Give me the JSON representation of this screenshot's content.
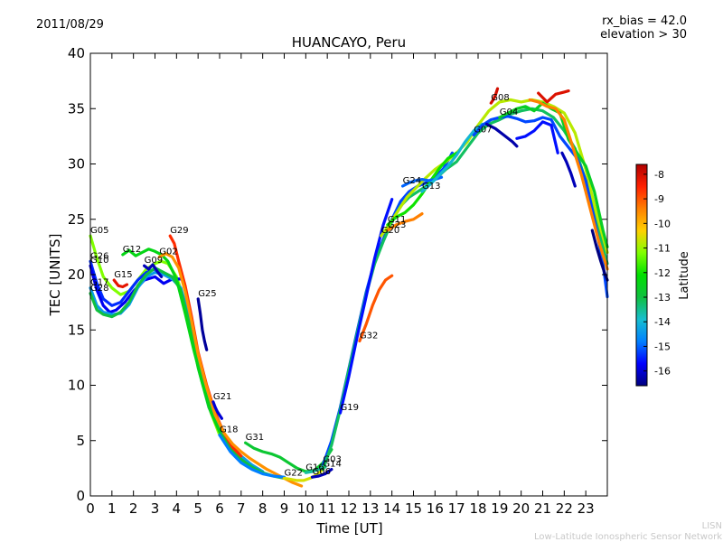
{
  "header": {
    "date": "2011/08/29",
    "rx_bias": "rx_bias = 42.0",
    "elevation": "elevation > 30"
  },
  "footer": {
    "line1": "LISN",
    "line2": "Low-Latitude Ionospheric Sensor Network"
  },
  "colormap": [
    "#00007f",
    "#0000ff",
    "#0080ff",
    "#17becf",
    "#10c040",
    "#00e000",
    "#80ff00",
    "#ffd000",
    "#ff8000",
    "#ff2000",
    "#b00000"
  ],
  "chart_data": {
    "type": "line",
    "title": "HUANCAYO, Peru",
    "xlabel": "Time [UT]",
    "ylabel": "TEC [UNITS]",
    "xlim": [
      0,
      24
    ],
    "ylim": [
      0,
      40
    ],
    "xticks": [
      "0",
      "1",
      "2",
      "3",
      "4",
      "5",
      "6",
      "7",
      "8",
      "9",
      "10",
      "11",
      "12",
      "13",
      "14",
      "15",
      "16",
      "17",
      "18",
      "19",
      "20",
      "21",
      "22",
      "23"
    ],
    "yticks": [
      "0",
      "5",
      "10",
      "15",
      "20",
      "25",
      "30",
      "35",
      "40"
    ],
    "grid": false,
    "colorbar": {
      "label": "Latitude",
      "range": [
        -16.6,
        -7.6
      ],
      "ticks": [
        "-8",
        "-9",
        "-10",
        "-11",
        "-12",
        "-13",
        "-14",
        "-15",
        "-16"
      ]
    },
    "series": [
      {
        "name": "G05",
        "lat": -11.2,
        "x": [
          0.0,
          0.3,
          0.6,
          1.0,
          1.4,
          1.8,
          2.2,
          2.6,
          3.0,
          3.3,
          3.6,
          4.0,
          4.4,
          4.8,
          5.2,
          5.6,
          6.0
        ],
        "y": [
          23.5,
          21.5,
          19.8,
          18.8,
          18.2,
          18.5,
          19.5,
          20.5,
          21.0,
          21.2,
          21.0,
          19.8,
          17.5,
          14.0,
          10.5,
          7.5,
          5.5
        ]
      },
      {
        "name": "G26",
        "lat": -15.4,
        "x": [
          0.0,
          0.3,
          0.6,
          1.0,
          1.4,
          1.8,
          2.2,
          2.6,
          3.0,
          3.4
        ],
        "y": [
          21.2,
          19.2,
          17.8,
          17.2,
          17.5,
          18.5,
          19.5,
          20.2,
          20.5,
          20.2
        ]
      },
      {
        "name": "G10",
        "lat": -15.8,
        "x": [
          0.0,
          0.3,
          0.6,
          0.9,
          1.2,
          1.6,
          2.0,
          2.5,
          3.0,
          3.4,
          3.8,
          4.2
        ],
        "y": [
          20.8,
          18.6,
          17.2,
          16.6,
          16.8,
          17.5,
          18.5,
          19.5,
          19.8,
          19.2,
          19.6,
          19.6
        ]
      },
      {
        "name": "G17",
        "lat": -14.4,
        "x": [
          0.0,
          0.3,
          0.6,
          1.0,
          1.4,
          1.8,
          2.2,
          2.6,
          3.0,
          3.4,
          3.8,
          4.2,
          4.6,
          5.0,
          5.5,
          6.0,
          6.5,
          7.0,
          7.5,
          8.0
        ],
        "y": [
          18.8,
          17.2,
          16.6,
          16.4,
          16.5,
          17.3,
          18.8,
          19.8,
          20.2,
          20.0,
          19.6,
          18.8,
          16.0,
          12.2,
          8.5,
          6.2,
          4.6,
          3.6,
          2.8,
          2.2
        ]
      },
      {
        "name": "G28",
        "lat": -13.0,
        "x": [
          0.0,
          0.3,
          0.6,
          1.0,
          1.4,
          1.8,
          2.2,
          2.6,
          3.0,
          3.4,
          3.8,
          4.2,
          4.6,
          5.0,
          5.5,
          6.0,
          6.5,
          7.0,
          7.5,
          8.0,
          8.5,
          9.0
        ],
        "y": [
          18.3,
          16.8,
          16.4,
          16.2,
          16.6,
          17.5,
          19.0,
          20.0,
          20.6,
          20.2,
          19.8,
          18.6,
          15.5,
          11.6,
          8.0,
          5.8,
          4.3,
          3.3,
          2.6,
          2.1,
          1.8,
          1.6
        ]
      },
      {
        "name": "G15",
        "lat": -8.2,
        "x": [
          1.1,
          1.3,
          1.5,
          1.7
        ],
        "y": [
          19.5,
          19.0,
          18.9,
          19.1
        ]
      },
      {
        "name": "G12",
        "lat": -12.4,
        "x": [
          1.5,
          1.8,
          2.1,
          2.4,
          2.7,
          3.0,
          3.3,
          3.6,
          4.0,
          4.4,
          4.8,
          5.2,
          5.6,
          6.0
        ],
        "y": [
          21.8,
          22.2,
          21.7,
          22.0,
          22.3,
          22.1,
          21.8,
          21.2,
          19.6,
          16.5,
          13.2,
          10.2,
          7.6,
          5.8
        ]
      },
      {
        "name": "G09",
        "lat": -16.2,
        "x": [
          2.5,
          2.7,
          2.9,
          3.1,
          3.3
        ],
        "y": [
          20.8,
          20.5,
          20.9,
          20.3,
          19.8
        ]
      },
      {
        "name": "G29",
        "lat": -8.6,
        "x": [
          3.7,
          3.9,
          4.1,
          4.4,
          4.7,
          5.0,
          5.4,
          5.8,
          6.2,
          6.6,
          7.0
        ],
        "y": [
          23.5,
          22.8,
          21.2,
          19.0,
          16.2,
          13.0,
          10.0,
          7.5,
          5.7,
          4.4,
          3.6
        ]
      },
      {
        "name": "G02",
        "lat": -9.6,
        "x": [
          3.2,
          3.5,
          3.8,
          4.1,
          4.4,
          4.7,
          5.0,
          5.4,
          5.8,
          6.2,
          6.6,
          7.0,
          7.4,
          7.8,
          8.2,
          8.6,
          9.0,
          9.4,
          9.8
        ],
        "y": [
          21.6,
          21.9,
          21.6,
          20.6,
          18.5,
          15.8,
          12.8,
          9.8,
          7.3,
          5.7,
          4.7,
          4.0,
          3.4,
          2.9,
          2.4,
          2.0,
          1.6,
          1.2,
          0.9
        ]
      },
      {
        "name": "G25",
        "lat": -16.4,
        "x": [
          5.0,
          5.1,
          5.2,
          5.3,
          5.4
        ],
        "y": [
          17.8,
          16.5,
          15.0,
          14.0,
          13.2
        ]
      },
      {
        "name": "G21",
        "lat": -16.0,
        "x": [
          5.7,
          5.8,
          5.9,
          6.0,
          6.1
        ],
        "y": [
          8.5,
          8.0,
          7.6,
          7.3,
          7.0
        ]
      },
      {
        "name": "G31",
        "lat": -12.8,
        "x": [
          7.2,
          7.6,
          8.0,
          8.4,
          8.8,
          9.2,
          9.6,
          10.0,
          10.4,
          10.8,
          11.2
        ],
        "y": [
          4.8,
          4.3,
          4.0,
          3.8,
          3.5,
          3.0,
          2.5,
          2.2,
          2.3,
          3.0,
          4.2
        ]
      },
      {
        "name": "G18",
        "lat": -14.8,
        "x": [
          6.0,
          6.5,
          7.0,
          7.5,
          8.0,
          8.5,
          9.0
        ],
        "y": [
          5.5,
          4.0,
          3.0,
          2.4,
          2.0,
          1.8,
          1.7
        ]
      },
      {
        "name": "G22",
        "lat": -10.6,
        "x": [
          9.0,
          9.3,
          9.6,
          9.9,
          10.2,
          10.5,
          10.8
        ],
        "y": [
          1.6,
          1.5,
          1.4,
          1.4,
          1.6,
          1.9,
          2.4
        ]
      },
      {
        "name": "G16",
        "lat": -13.6,
        "x": [
          10.0,
          10.3,
          10.6,
          10.9
        ],
        "y": [
          2.1,
          2.2,
          2.4,
          2.6
        ]
      },
      {
        "name": "G06",
        "lat": -16.2,
        "x": [
          10.3,
          10.6,
          10.9,
          11.2
        ],
        "y": [
          1.7,
          1.8,
          2.0,
          2.4
        ]
      },
      {
        "name": "G03",
        "lat": -15.2,
        "x": [
          10.8,
          11.2,
          11.6,
          12.0,
          12.4,
          12.8,
          13.2,
          13.6,
          14.0,
          14.4,
          14.8,
          15.2,
          15.6,
          16.0,
          16.4,
          16.8
        ],
        "y": [
          2.8,
          5.0,
          8.0,
          11.5,
          15.0,
          18.4,
          21.2,
          23.2,
          25.0,
          26.6,
          27.5,
          28.0,
          28.3,
          28.8,
          29.6,
          31.0
        ]
      },
      {
        "name": "G14",
        "lat": -13.2,
        "x": [
          10.8,
          11.2,
          11.6,
          12.0,
          12.4,
          12.8,
          13.2,
          13.6,
          14.0,
          14.4,
          14.8,
          15.2,
          15.6,
          16.0,
          16.5,
          17.0,
          17.5,
          18.0,
          18.5,
          19.0,
          19.5,
          20.0,
          20.5,
          21.0,
          21.5,
          22.0,
          22.5,
          23.0,
          23.5,
          24.0
        ],
        "y": [
          2.4,
          4.6,
          7.8,
          11.4,
          14.8,
          18.2,
          21.0,
          23.0,
          24.8,
          26.2,
          27.0,
          27.5,
          28.0,
          28.6,
          29.5,
          30.2,
          31.5,
          32.8,
          33.6,
          34.0,
          34.5,
          34.8,
          35.0,
          34.8,
          34.2,
          33.0,
          31.4,
          28.5,
          24.8,
          21.0
        ]
      },
      {
        "name": "G19",
        "lat": -15.6,
        "x": [
          11.6,
          12.0,
          12.4,
          12.8,
          13.2,
          13.6,
          14.0
        ],
        "y": [
          7.5,
          10.8,
          14.5,
          18.0,
          21.5,
          24.5,
          26.8
        ]
      },
      {
        "name": "G32",
        "lat": -9.0,
        "x": [
          12.5,
          12.8,
          13.1,
          13.4,
          13.7,
          14.0
        ],
        "y": [
          14.0,
          15.5,
          17.2,
          18.6,
          19.5,
          19.9
        ]
      },
      {
        "name": "G20",
        "lat": -10.8,
        "x": [
          13.5,
          13.9,
          14.3,
          14.7,
          15.1,
          15.5,
          16.0,
          16.5,
          17.0,
          17.5,
          18.0,
          18.5,
          19.0,
          19.5,
          20.0,
          20.5,
          21.0,
          21.5,
          22.0,
          22.5,
          23.0,
          23.5,
          24.0
        ],
        "y": [
          23.5,
          24.6,
          25.8,
          27.0,
          27.8,
          28.6,
          29.5,
          30.2,
          31.0,
          32.0,
          33.5,
          34.8,
          35.6,
          35.8,
          35.6,
          35.8,
          35.6,
          35.2,
          34.6,
          32.8,
          29.5,
          25.5,
          22.0
        ]
      },
      {
        "name": "G11",
        "lat": -12.0,
        "x": [
          13.8,
          14.2,
          14.6,
          15.0,
          15.4,
          15.8,
          16.2,
          16.6,
          17.0
        ],
        "y": [
          24.5,
          25.2,
          25.6,
          26.3,
          27.3,
          28.5,
          29.6,
          30.5,
          31.0
        ]
      },
      {
        "name": "G23",
        "lat": -9.4,
        "x": [
          13.8,
          14.2,
          14.6,
          15.0,
          15.4
        ],
        "y": [
          24.0,
          24.5,
          24.8,
          25.0,
          25.5
        ]
      },
      {
        "name": "G24",
        "lat": -15.0,
        "x": [
          14.5,
          14.8,
          15.1,
          15.4,
          15.7,
          16.0,
          16.3
        ],
        "y": [
          28.0,
          28.3,
          28.5,
          28.6,
          28.5,
          28.6,
          28.8
        ]
      },
      {
        "name": "G13",
        "lat": -14.0,
        "x": [
          15.4,
          15.8,
          16.2,
          16.6,
          17.0,
          17.4,
          17.8,
          18.2
        ],
        "y": [
          27.5,
          28.2,
          29.0,
          29.8,
          30.8,
          32.0,
          33.0,
          33.6
        ]
      },
      {
        "name": "G07",
        "lat": -15.2,
        "x": [
          17.8,
          18.2,
          18.6,
          19.0,
          19.4,
          19.8,
          20.2,
          20.6,
          21.0,
          21.4,
          21.8,
          22.2,
          22.6,
          23.0,
          23.4,
          23.8,
          24.0
        ],
        "y": [
          32.6,
          33.5,
          34.0,
          34.2,
          34.3,
          34.1,
          33.8,
          33.9,
          34.2,
          34.0,
          32.5,
          31.5,
          30.5,
          28.5,
          25.0,
          21.0,
          18.0
        ]
      },
      {
        "name": "G08",
        "lat": -8.0,
        "x": [
          18.6,
          18.7,
          18.8,
          18.9
        ],
        "y": [
          35.5,
          35.8,
          36.2,
          36.8
        ]
      },
      {
        "name": "G04",
        "lat": -12.6,
        "x": [
          19.0,
          19.4,
          19.8,
          20.2,
          20.6,
          21.0,
          21.4,
          21.8,
          22.2,
          22.6,
          23.0,
          23.4,
          23.8,
          24.0
        ],
        "y": [
          34.2,
          34.6,
          35.0,
          35.2,
          34.8,
          35.5,
          35.0,
          34.6,
          32.2,
          31.0,
          29.8,
          27.5,
          24.0,
          22.5
        ]
      },
      {
        "name": "",
        "lat": -16.3,
        "x": [
          18.4,
          18.8,
          19.2,
          19.6,
          19.8
        ],
        "y": [
          33.6,
          33.2,
          32.6,
          32.0,
          31.6
        ]
      },
      {
        "name": "",
        "lat": -15.6,
        "x": [
          19.8,
          20.2,
          20.6,
          21.0,
          21.4,
          21.7
        ],
        "y": [
          32.3,
          32.5,
          33.0,
          33.8,
          33.5,
          31.0
        ]
      },
      {
        "name": "",
        "lat": -8.1,
        "x": [
          20.8,
          21.2,
          21.6,
          22.0,
          22.2
        ],
        "y": [
          36.4,
          35.6,
          36.3,
          36.5,
          36.6
        ]
      },
      {
        "name": "",
        "lat": -9.4,
        "x": [
          20.4,
          20.8,
          21.2,
          21.6,
          22.0,
          22.4,
          22.8,
          23.2,
          23.6,
          24.0
        ],
        "y": [
          35.8,
          35.6,
          35.2,
          35.0,
          34.0,
          31.5,
          29.0,
          26.0,
          23.0,
          20.5
        ]
      },
      {
        "name": "",
        "lat": -16.2,
        "x": [
          21.9,
          22.1,
          22.3,
          22.5
        ],
        "y": [
          31.0,
          30.2,
          29.2,
          28.0
        ]
      },
      {
        "name": "",
        "lat": -16.6,
        "x": [
          23.3,
          23.5,
          23.7,
          23.9,
          24.0
        ],
        "y": [
          24.0,
          22.5,
          21.2,
          20.0,
          19.5
        ]
      }
    ]
  }
}
